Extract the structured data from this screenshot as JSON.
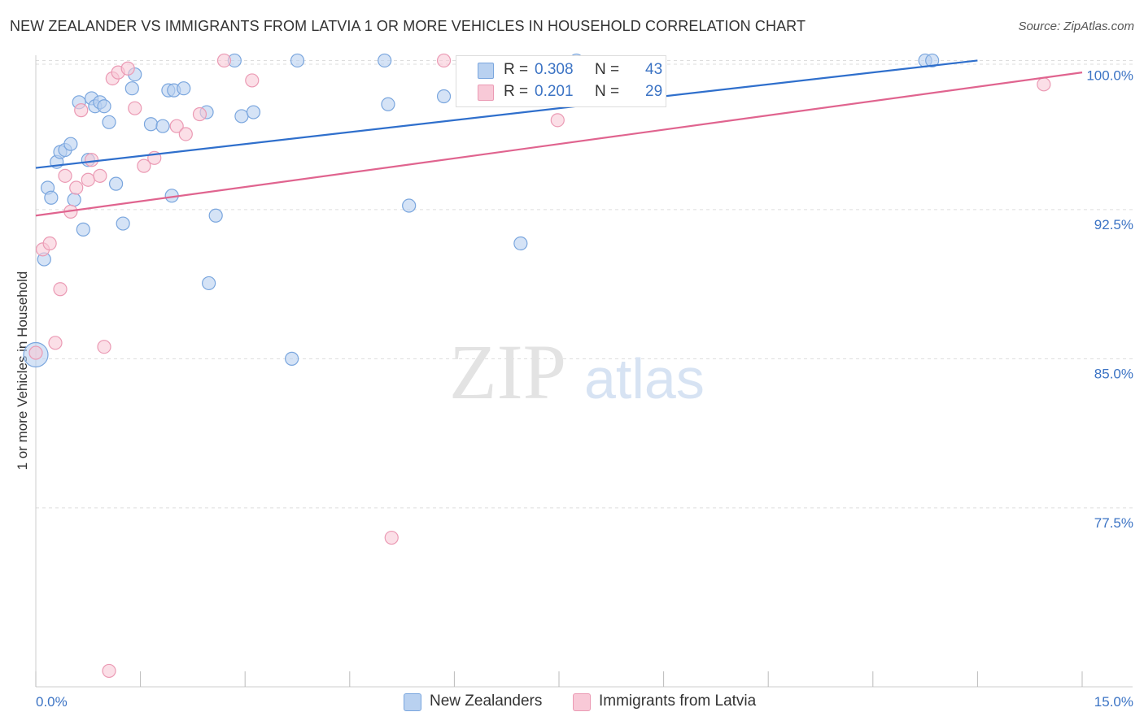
{
  "title": "NEW ZEALANDER VS IMMIGRANTS FROM LATVIA 1 OR MORE VEHICLES IN HOUSEHOLD CORRELATION CHART",
  "source": "Source: ZipAtlas.com",
  "watermark": {
    "zip": "ZIP",
    "atlas": "atlas"
  },
  "legend": {
    "r_label": "R =",
    "n_label": "N =",
    "series": [
      {
        "r": "0.308",
        "n": "43"
      },
      {
        "r": "0.201",
        "n": "29"
      }
    ]
  },
  "bottom_legend": [
    "New Zealanders",
    "Immigrants from Latvia"
  ],
  "colors": {
    "blue_fill": "#b9d1f0",
    "blue_stroke": "#7aa6de",
    "blue_line": "#2f6fcc",
    "pink_fill": "#f8c9d7",
    "pink_stroke": "#eb9ab4",
    "pink_line": "#e0648f",
    "tick_text": "#3b73c4",
    "grid": "#dddddd"
  },
  "chart_data": {
    "type": "scatter",
    "title": "NEW ZEALANDER VS IMMIGRANTS FROM LATVIA 1 OR MORE VEHICLES IN HOUSEHOLD CORRELATION CHART",
    "xlabel": "",
    "ylabel": "1 or more Vehicles in Household",
    "xlim": [
      0,
      15
    ],
    "ylim": [
      68.5,
      101
    ],
    "x_tick_labels": [
      "0.0%",
      "15.0%"
    ],
    "y_ticks": [
      77.5,
      85.0,
      92.5,
      100.0
    ],
    "y_tick_labels": [
      "77.5%",
      "85.0%",
      "92.5%",
      "100.0%"
    ],
    "grid": true,
    "series": [
      {
        "name": "New Zealanders",
        "color": "#7aa6de",
        "points": [
          [
            0.0,
            85.2
          ],
          [
            0.12,
            90.0
          ],
          [
            0.17,
            93.6
          ],
          [
            0.22,
            93.1
          ],
          [
            0.3,
            94.9
          ],
          [
            0.35,
            95.4
          ],
          [
            0.42,
            95.5
          ],
          [
            0.5,
            95.8
          ],
          [
            0.55,
            93.0
          ],
          [
            0.62,
            97.9
          ],
          [
            0.68,
            91.5
          ],
          [
            0.75,
            95.0
          ],
          [
            0.8,
            98.1
          ],
          [
            0.85,
            97.7
          ],
          [
            0.92,
            97.9
          ],
          [
            0.98,
            97.7
          ],
          [
            1.05,
            96.9
          ],
          [
            1.15,
            93.8
          ],
          [
            1.25,
            91.8
          ],
          [
            1.38,
            98.6
          ],
          [
            1.42,
            99.3
          ],
          [
            1.65,
            96.8
          ],
          [
            1.82,
            96.7
          ],
          [
            1.9,
            98.5
          ],
          [
            1.95,
            93.2
          ],
          [
            1.98,
            98.5
          ],
          [
            2.12,
            98.6
          ],
          [
            2.45,
            97.4
          ],
          [
            2.48,
            88.8
          ],
          [
            2.58,
            92.2
          ],
          [
            2.85,
            100.0
          ],
          [
            2.95,
            97.2
          ],
          [
            3.12,
            97.4
          ],
          [
            3.67,
            85.0
          ],
          [
            3.75,
            100.0
          ],
          [
            5.0,
            100.0
          ],
          [
            5.05,
            97.8
          ],
          [
            5.35,
            92.7
          ],
          [
            5.85,
            98.2
          ],
          [
            6.95,
            90.8
          ],
          [
            7.75,
            100.0
          ],
          [
            12.75,
            100.0
          ],
          [
            12.85,
            100.0
          ]
        ]
      },
      {
        "name": "Immigrants from Latvia",
        "color": "#eb9ab4",
        "points": [
          [
            0.0,
            85.3
          ],
          [
            0.1,
            90.5
          ],
          [
            0.2,
            90.8
          ],
          [
            0.28,
            85.8
          ],
          [
            0.35,
            88.5
          ],
          [
            0.42,
            94.2
          ],
          [
            0.5,
            92.4
          ],
          [
            0.58,
            93.6
          ],
          [
            0.65,
            97.5
          ],
          [
            0.75,
            94.0
          ],
          [
            0.8,
            95.0
          ],
          [
            0.92,
            94.2
          ],
          [
            0.98,
            85.6
          ],
          [
            1.05,
            69.3
          ],
          [
            1.1,
            99.1
          ],
          [
            1.18,
            99.4
          ],
          [
            1.32,
            99.6
          ],
          [
            1.42,
            97.6
          ],
          [
            1.55,
            94.7
          ],
          [
            1.7,
            95.1
          ],
          [
            2.02,
            96.7
          ],
          [
            2.15,
            96.3
          ],
          [
            2.35,
            97.3
          ],
          [
            2.7,
            100.0
          ],
          [
            3.1,
            99.0
          ],
          [
            5.1,
            76.0
          ],
          [
            5.85,
            100.0
          ],
          [
            7.48,
            97.0
          ],
          [
            14.45,
            98.8
          ]
        ]
      }
    ],
    "trendlines": [
      {
        "name": "New Zealanders",
        "from": [
          0,
          94.6
        ],
        "to": [
          13.5,
          100.0
        ]
      },
      {
        "name": "Immigrants from Latvia",
        "from": [
          0,
          92.2
        ],
        "to": [
          15.0,
          99.4
        ]
      }
    ]
  }
}
